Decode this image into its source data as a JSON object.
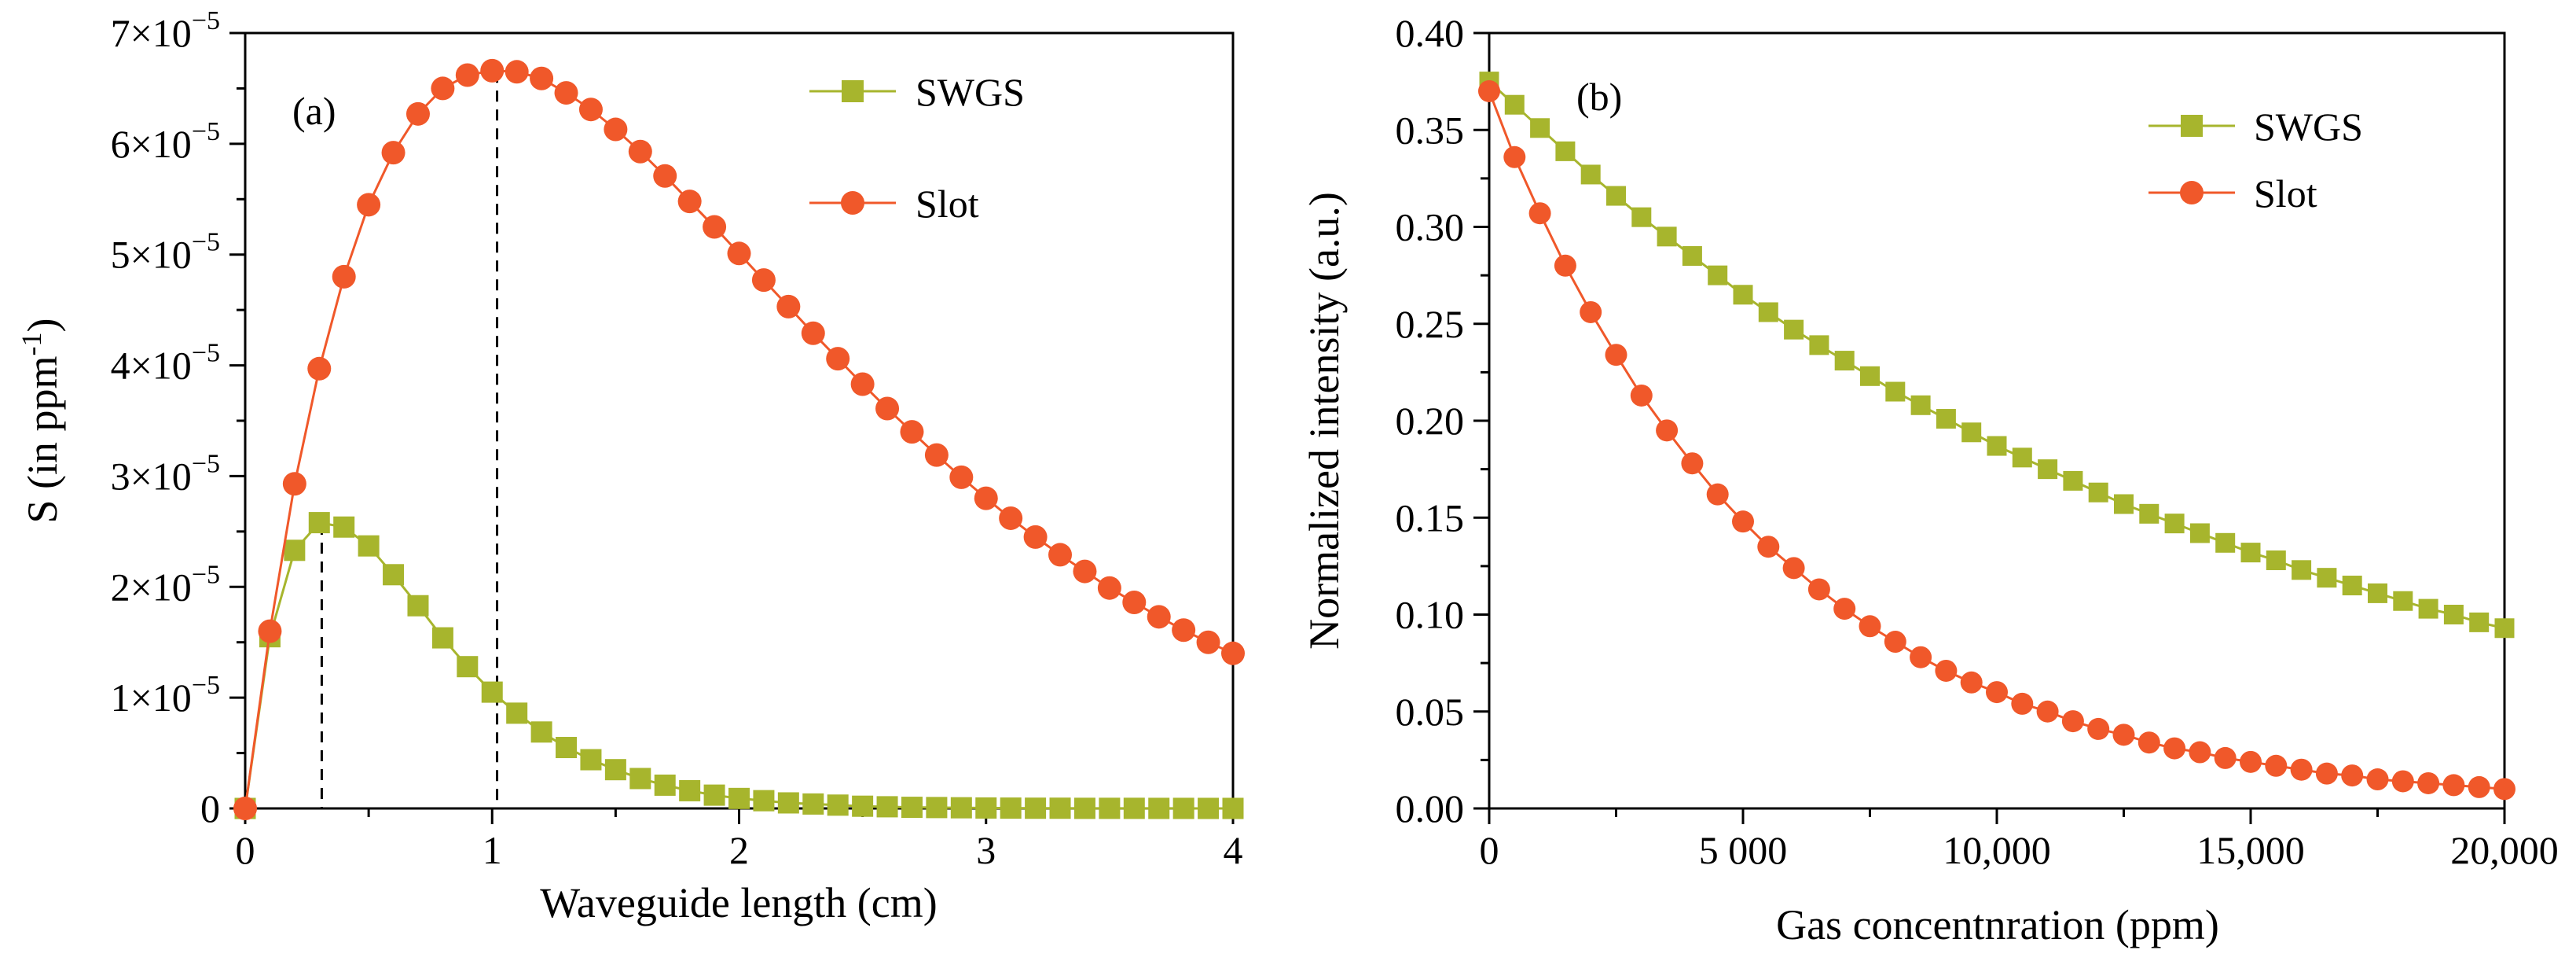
{
  "chart_data": [
    {
      "type": "line",
      "panel_label": "(a)",
      "xlabel": "Waveguide length (cm)",
      "ylabel_main": "S (in ppm",
      "ylabel_sup": "-1",
      "ylabel_end": ")",
      "xlim": [
        0,
        4
      ],
      "ylim": [
        0,
        7e-05
      ],
      "xticks": [
        0,
        1,
        2,
        3,
        4
      ],
      "xtick_labels": [
        "0",
        "1",
        "2",
        "3",
        "4"
      ],
      "yticks": [
        0,
        1e-05,
        2e-05,
        3e-05,
        4e-05,
        5e-05,
        6e-05,
        7e-05
      ],
      "ytick_labels": [
        {
          "mant": "0",
          "exp": ""
        },
        {
          "mant": "1×10",
          "exp": "−5"
        },
        {
          "mant": "2×10",
          "exp": "−5"
        },
        {
          "mant": "3×10",
          "exp": "−5"
        },
        {
          "mant": "4×10",
          "exp": "−5"
        },
        {
          "mant": "5×10",
          "exp": "−5"
        },
        {
          "mant": "6×10",
          "exp": "−5"
        },
        {
          "mant": "7×10",
          "exp": "−5"
        }
      ],
      "legend": [
        "SWGS",
        "Slot"
      ],
      "annotations": [
        {
          "type": "vline",
          "x": 0.31,
          "y_top": 2.57e-05
        },
        {
          "type": "vline",
          "x": 1.02,
          "y_top": 6.65e-05
        }
      ],
      "series": [
        {
          "name": "SWGS",
          "marker": "square",
          "color": "#a7b52d",
          "x": [
            0,
            0.1,
            0.2,
            0.3,
            0.4,
            0.5,
            0.6,
            0.7,
            0.8,
            0.9,
            1.0,
            1.1,
            1.2,
            1.3,
            1.4,
            1.5,
            1.6,
            1.7,
            1.8,
            1.9,
            2.0,
            2.1,
            2.2,
            2.3,
            2.4,
            2.5,
            2.6,
            2.7,
            2.8,
            2.9,
            3.0,
            3.1,
            3.2,
            3.3,
            3.4,
            3.5,
            3.6,
            3.7,
            3.8,
            3.9,
            4.0
          ],
          "y": [
            0,
            1.55e-05,
            2.33e-05,
            2.58e-05,
            2.54e-05,
            2.37e-05,
            2.11e-05,
            1.83e-05,
            1.54e-05,
            1.28e-05,
            1.05e-05,
            8.6e-06,
            6.9e-06,
            5.5e-06,
            4.4e-06,
            3.5e-06,
            2.7e-06,
            2.1e-06,
            1.6e-06,
            1.2e-06,
            9e-07,
            7e-07,
            5e-07,
            4e-07,
            3e-07,
            2e-07,
            1.5e-07,
            1e-07,
            8e-08,
            6e-08,
            4e-08,
            3e-08,
            2e-08,
            2e-08,
            1e-08,
            1e-08,
            1e-08,
            5e-09,
            5e-09,
            3e-09,
            3e-09
          ]
        },
        {
          "name": "Slot",
          "marker": "circle",
          "color": "#f0582a",
          "x": [
            0,
            0.1,
            0.2,
            0.3,
            0.4,
            0.5,
            0.6,
            0.7,
            0.8,
            0.9,
            1.0,
            1.1,
            1.2,
            1.3,
            1.4,
            1.5,
            1.6,
            1.7,
            1.8,
            1.9,
            2.0,
            2.1,
            2.2,
            2.3,
            2.4,
            2.5,
            2.6,
            2.7,
            2.8,
            2.9,
            3.0,
            3.1,
            3.2,
            3.3,
            3.4,
            3.5,
            3.6,
            3.7,
            3.8,
            3.9,
            4.0
          ],
          "y": [
            0,
            1.6e-05,
            2.93e-05,
            3.97e-05,
            4.8e-05,
            5.45e-05,
            5.92e-05,
            6.27e-05,
            6.5e-05,
            6.62e-05,
            6.66e-05,
            6.65e-05,
            6.59e-05,
            6.46e-05,
            6.31e-05,
            6.13e-05,
            5.93e-05,
            5.71e-05,
            5.48e-05,
            5.25e-05,
            5.01e-05,
            4.77e-05,
            4.53e-05,
            4.29e-05,
            4.06e-05,
            3.83e-05,
            3.61e-05,
            3.4e-05,
            3.19e-05,
            2.99e-05,
            2.8e-05,
            2.62e-05,
            2.45e-05,
            2.29e-05,
            2.14e-05,
            1.99e-05,
            1.86e-05,
            1.73e-05,
            1.61e-05,
            1.5e-05,
            1.4e-05
          ]
        }
      ]
    },
    {
      "type": "line",
      "panel_label": "(b)",
      "xlabel": "Gas concentnration (ppm)",
      "ylabel": "Normalized intensity (a.u.)",
      "xlim": [
        0,
        20000
      ],
      "ylim": [
        0,
        0.4
      ],
      "xticks": [
        0,
        5000,
        10000,
        15000,
        20000
      ],
      "xtick_labels": [
        "0",
        "5 000",
        "10,000",
        "15,000",
        "20,000"
      ],
      "yticks": [
        0,
        0.05,
        0.1,
        0.15,
        0.2,
        0.25,
        0.3,
        0.35,
        0.4
      ],
      "ytick_labels": [
        "0.00",
        "0.05",
        "0.10",
        "0.15",
        "0.20",
        "0.25",
        "0.30",
        "0.35",
        "0.40"
      ],
      "legend": [
        "SWGS",
        "Slot"
      ],
      "series": [
        {
          "name": "SWGS",
          "marker": "square",
          "color": "#a7b52d",
          "x": [
            0,
            500,
            1000,
            1500,
            2000,
            2500,
            3000,
            3500,
            4000,
            4500,
            5000,
            5500,
            6000,
            6500,
            7000,
            7500,
            8000,
            8500,
            9000,
            9500,
            10000,
            10500,
            11000,
            11500,
            12000,
            12500,
            13000,
            13500,
            14000,
            14500,
            15000,
            15500,
            16000,
            16500,
            17000,
            17500,
            18000,
            18500,
            19000,
            19500,
            20000
          ],
          "y": [
            0.375,
            0.363,
            0.351,
            0.339,
            0.327,
            0.316,
            0.305,
            0.295,
            0.285,
            0.275,
            0.265,
            0.256,
            0.247,
            0.239,
            0.231,
            0.223,
            0.215,
            0.208,
            0.201,
            0.194,
            0.187,
            0.181,
            0.175,
            0.169,
            0.163,
            0.157,
            0.152,
            0.147,
            0.142,
            0.137,
            0.132,
            0.128,
            0.123,
            0.119,
            0.115,
            0.111,
            0.107,
            0.103,
            0.1,
            0.096,
            0.093
          ]
        },
        {
          "name": "Slot",
          "marker": "circle",
          "color": "#f0582a",
          "x": [
            0,
            500,
            1000,
            1500,
            2000,
            2500,
            3000,
            3500,
            4000,
            4500,
            5000,
            5500,
            6000,
            6500,
            7000,
            7500,
            8000,
            8500,
            9000,
            9500,
            10000,
            10500,
            11000,
            11500,
            12000,
            12500,
            13000,
            13500,
            14000,
            14500,
            15000,
            15500,
            16000,
            16500,
            17000,
            17500,
            18000,
            18500,
            19000,
            19500,
            20000
          ],
          "y": [
            0.37,
            0.336,
            0.307,
            0.28,
            0.256,
            0.234,
            0.213,
            0.195,
            0.178,
            0.162,
            0.148,
            0.135,
            0.124,
            0.113,
            0.103,
            0.094,
            0.086,
            0.078,
            0.071,
            0.065,
            0.06,
            0.054,
            0.05,
            0.045,
            0.041,
            0.038,
            0.034,
            0.031,
            0.029,
            0.026,
            0.024,
            0.022,
            0.02,
            0.018,
            0.017,
            0.015,
            0.014,
            0.013,
            0.012,
            0.011,
            0.01
          ]
        }
      ]
    }
  ]
}
